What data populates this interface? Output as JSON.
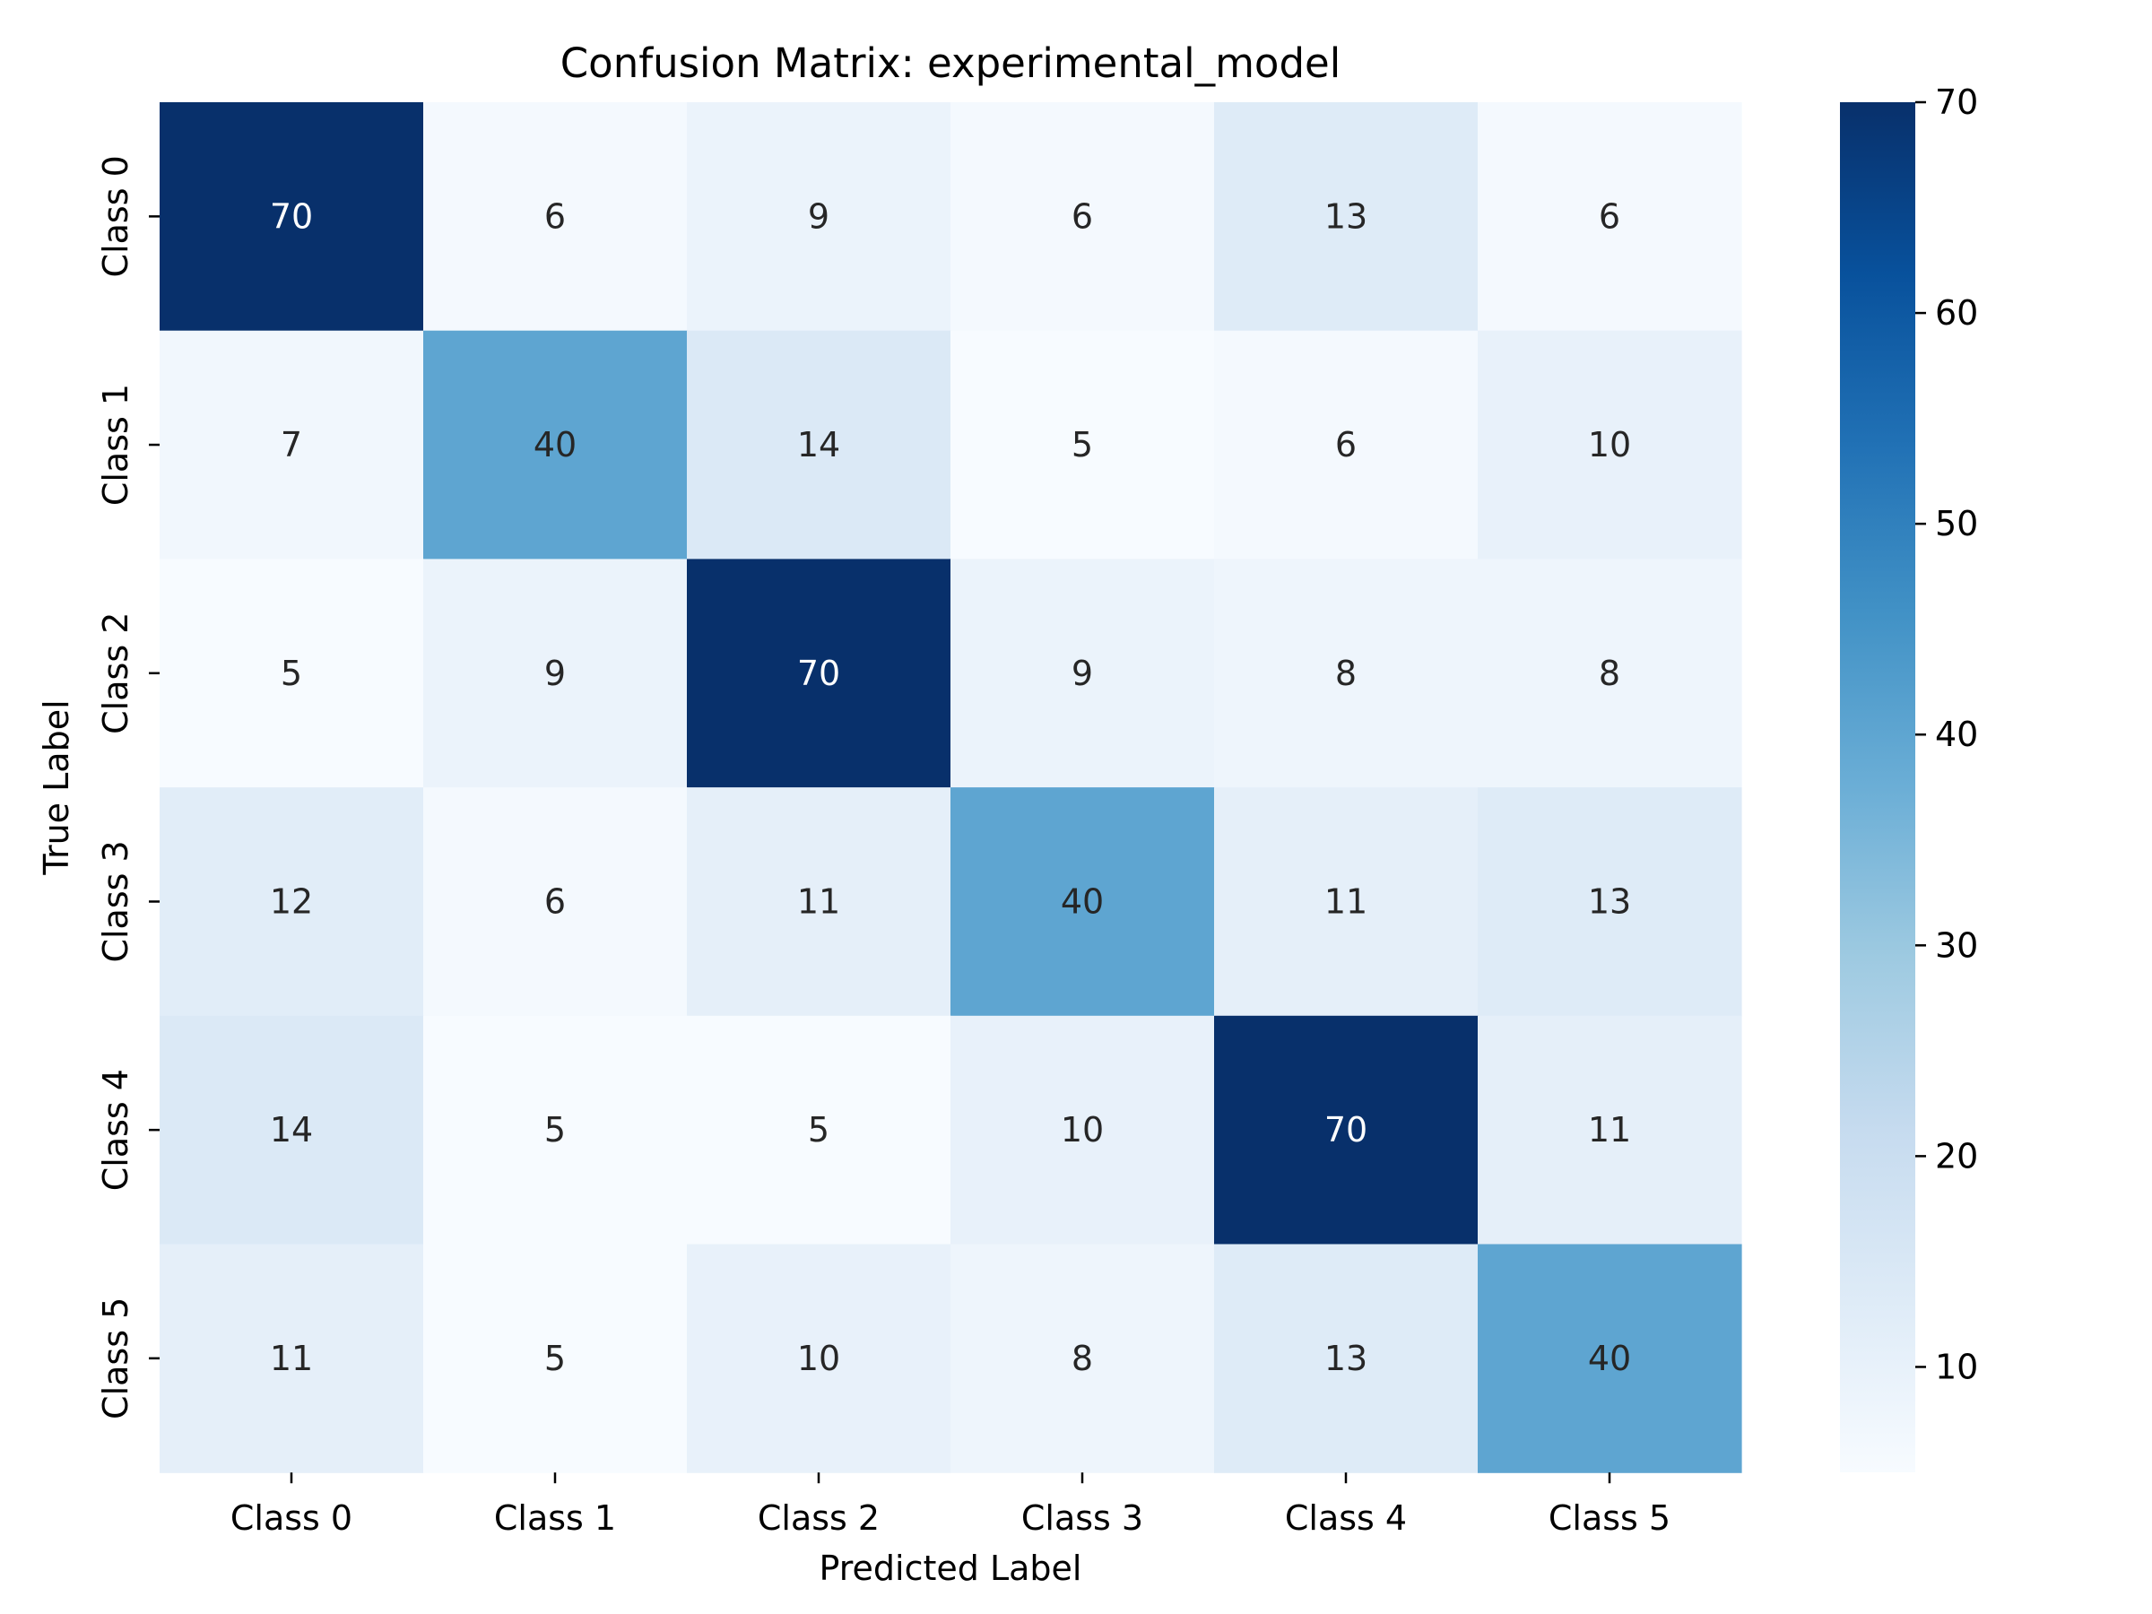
{
  "chart_data": {
    "type": "heatmap",
    "title": "Confusion Matrix: experimental_model",
    "xlabel": "Predicted Label",
    "ylabel": "True Label",
    "x_categories": [
      "Class 0",
      "Class 1",
      "Class 2",
      "Class 3",
      "Class 4",
      "Class 5"
    ],
    "y_categories": [
      "Class 0",
      "Class 1",
      "Class 2",
      "Class 3",
      "Class 4",
      "Class 5"
    ],
    "values": [
      [
        70,
        6,
        9,
        6,
        13,
        6
      ],
      [
        7,
        40,
        14,
        5,
        6,
        10
      ],
      [
        5,
        9,
        70,
        9,
        8,
        8
      ],
      [
        12,
        6,
        11,
        40,
        11,
        13
      ],
      [
        14,
        5,
        5,
        10,
        70,
        11
      ],
      [
        11,
        5,
        10,
        8,
        13,
        40
      ]
    ],
    "colormap": "Blues",
    "color_range": [
      5,
      70
    ],
    "colorbar_ticks": [
      10,
      20,
      30,
      40,
      50,
      60,
      70
    ],
    "annotations": true,
    "legend": "colorbar-right"
  }
}
